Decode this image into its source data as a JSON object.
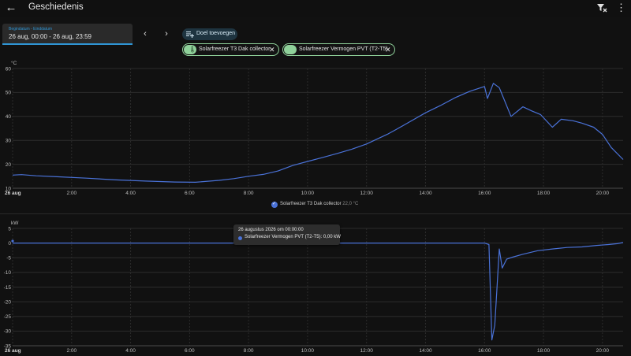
{
  "app": {
    "title": "Geschiedenis",
    "back_icon": "arrow-left-icon",
    "filter_icon": "filter-remove-icon",
    "menu_icon": "dots-vertical-icon"
  },
  "date_picker": {
    "label": "Begindatum - Einddatum",
    "value": "26 aug, 00:00 - 26 aug, 23:59"
  },
  "toolbar": {
    "prev_icon": "chevron-left-icon",
    "next_icon": "chevron-right-icon",
    "add_target_label": "Doel toevoegen"
  },
  "chips": [
    {
      "label": "Solarfreezer T3 Dak collector",
      "icon": "thermometer-icon"
    },
    {
      "label": "Solarfreezer Vermogen PVT (T2-T5)",
      "icon": "sensor-icon"
    }
  ],
  "colors": {
    "accent": "#2f95d4",
    "series": "#4a72d8",
    "chip": "#8fd19a"
  },
  "chart_data": [
    {
      "type": "line",
      "ylabel": "°C",
      "ylim": [
        10,
        60
      ],
      "yticks": [
        "60",
        "50",
        "40",
        "30",
        "20",
        "10"
      ],
      "xticks": [
        "26 aug",
        "2:00",
        "4:00",
        "6:00",
        "8:00",
        "10:00",
        "12:00",
        "14:00",
        "16:00",
        "18:00",
        "20:00"
      ],
      "x_hours_range": [
        0,
        20.7
      ],
      "grid": true,
      "legend_position": "bottom-center",
      "series": [
        {
          "name": "Solarfreezer T3 Dak collector",
          "current": "22,0 °C",
          "x": [
            0,
            0.3,
            0.8,
            1.5,
            2.5,
            3.5,
            4.5,
            5.5,
            6.2,
            7,
            7.5,
            8,
            8.5,
            9,
            9.5,
            10,
            10.5,
            11,
            11.5,
            12,
            12.3,
            12.7,
            13,
            13.5,
            14,
            14.5,
            15,
            15.5,
            16,
            16.1,
            16.3,
            16.5,
            16.9,
            17.3,
            17.6,
            17.9,
            18.3,
            18.6,
            19,
            19.3,
            19.7,
            20,
            20.3,
            20.7
          ],
          "values": [
            15.5,
            15.7,
            15.2,
            14.8,
            14.2,
            13.5,
            13.0,
            12.6,
            12.5,
            13.3,
            14.0,
            15.0,
            15.8,
            17.2,
            19.5,
            21.2,
            22.8,
            24.5,
            26.3,
            28.5,
            30.2,
            32.5,
            34.5,
            38.0,
            41.5,
            44.5,
            47.8,
            50.5,
            52.5,
            47.5,
            53.8,
            52.0,
            40.0,
            44.0,
            42.3,
            40.8,
            35.5,
            38.8,
            38.2,
            37.2,
            35.5,
            32.5,
            27.0,
            22.0
          ]
        }
      ]
    },
    {
      "type": "line",
      "ylabel": "kW",
      "ylim": [
        -35,
        5
      ],
      "yticks": [
        "5",
        "0",
        "-5",
        "-10",
        "-15",
        "-20",
        "-25",
        "-30",
        "-35"
      ],
      "xticks": [
        "26 aug",
        "2:00",
        "4:00",
        "6:00",
        "8:00",
        "10:00",
        "12:00",
        "14:00",
        "16:00",
        "18:00",
        "20:00"
      ],
      "x_hours_range": [
        0,
        20.7
      ],
      "grid": true,
      "series": [
        {
          "name": "Solarfreezer Vermogen PVT (T2-T5)",
          "x": [
            0,
            16,
            16.15,
            16.25,
            16.35,
            16.5,
            16.6,
            16.75,
            16.95,
            17.3,
            17.8,
            18.3,
            18.8,
            19.3,
            19.8,
            20.2,
            20.5,
            20.7
          ],
          "values": [
            0,
            0,
            -0.5,
            -33.0,
            -28.0,
            -2.0,
            -8.5,
            -5.5,
            -4.8,
            -3.8,
            -2.6,
            -2.0,
            -1.5,
            -1.3,
            -0.8,
            -0.5,
            -0.2,
            0.2
          ]
        }
      ],
      "tooltip": {
        "title": "26 augustus 2026 om 00:00:00",
        "text": "Solarfreezer Vermogen PVT (T2-T5): 0,00 kW"
      }
    }
  ]
}
